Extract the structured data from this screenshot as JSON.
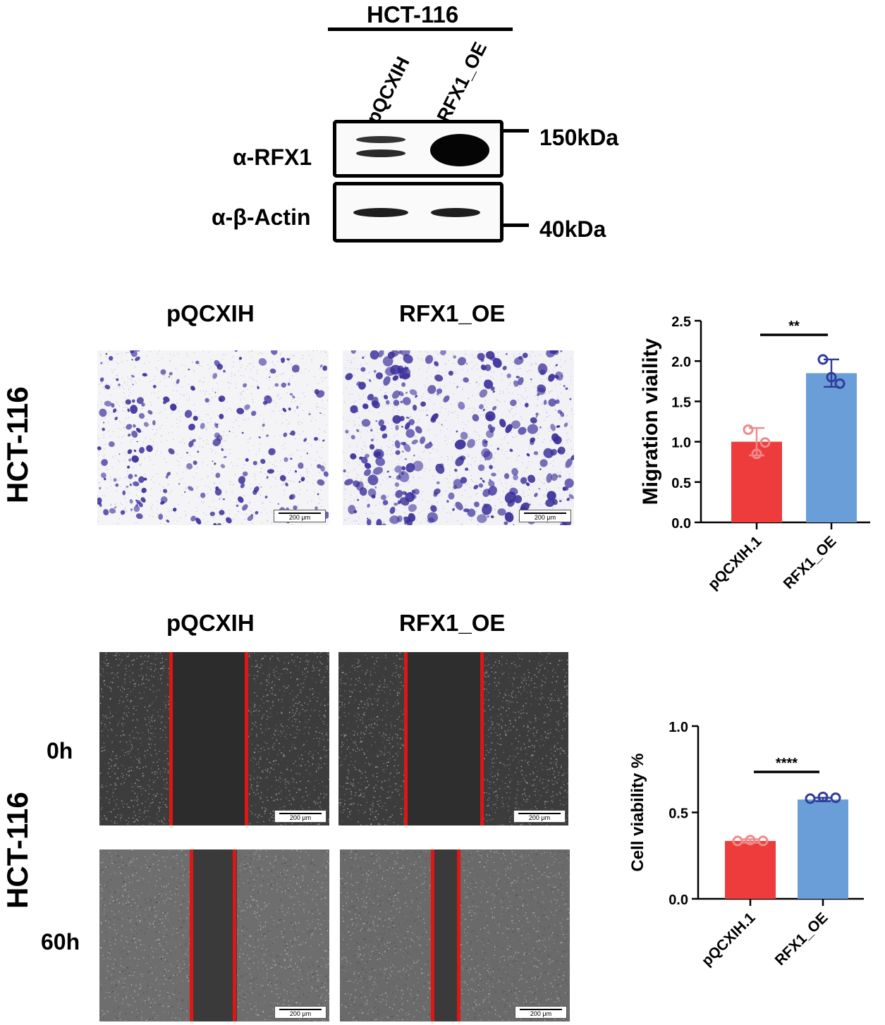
{
  "western_blot": {
    "cell_line": "HCT-116",
    "lanes": [
      "pQCXIH",
      "RFX1_OE"
    ],
    "rows": [
      {
        "antibody": "α-RFX1",
        "marker": "150kDa"
      },
      {
        "antibody": "α-β-Actin",
        "marker": "40kDa"
      }
    ]
  },
  "transwell": {
    "row_label": "HCT-116",
    "conditions": [
      "pQCXIH",
      "RFX1_OE"
    ],
    "scale_bar": "200 μm"
  },
  "wound_healing": {
    "row_label": "HCT-116",
    "conditions": [
      "pQCXIH",
      "RFX1_OE"
    ],
    "timepoints": [
      "0h",
      "60h"
    ],
    "scale_bar": "200 μm"
  },
  "colors": {
    "control": "#ee3c3c",
    "control_points": "#f08a8a",
    "overexpression": "#6a9ed8",
    "overexpression_points": "#2f3f9a",
    "wound_line": "#e01515",
    "stain": "#3a2f9a"
  },
  "chart_data": [
    {
      "type": "bar",
      "categories": [
        "pQCXIH.1",
        "RFX1_OE"
      ],
      "values": [
        1.0,
        1.85
      ],
      "errors": [
        0.17,
        0.17
      ],
      "points": [
        [
          1.15,
          0.85,
          0.99
        ],
        [
          2.02,
          1.8,
          1.72
        ]
      ],
      "ylabel": "Migration viaility",
      "ylim": [
        0,
        2.5
      ],
      "yticks": [
        "0.0",
        "0.5",
        "1.0",
        "1.5",
        "2.0",
        "2.5"
      ],
      "significance": "**"
    },
    {
      "type": "bar",
      "categories": [
        "pQCXIH.1",
        "RFX1_OE"
      ],
      "values": [
        0.335,
        0.575
      ],
      "errors": [
        0.01,
        0.01
      ],
      "points": [
        [
          0.335,
          0.34,
          0.335
        ],
        [
          0.58,
          0.59,
          0.585
        ]
      ],
      "ylabel": "Cell viability %",
      "ylim": [
        0,
        1.0
      ],
      "yticks": [
        "0.0",
        "0.5",
        "1.0"
      ],
      "significance": "****"
    }
  ]
}
